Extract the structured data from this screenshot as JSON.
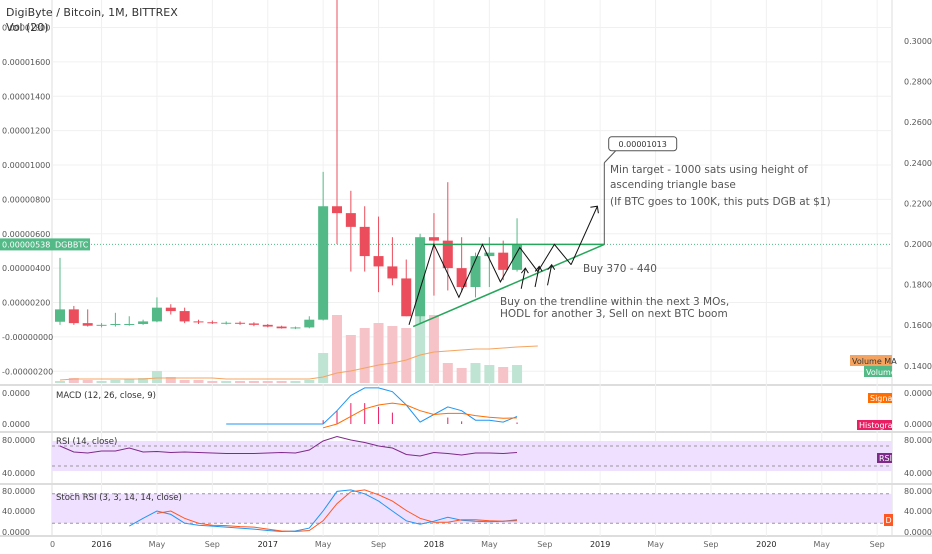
{
  "header": {
    "symbol_title": "DigiByte / Bitcoin, 1M, BITTREX",
    "volume_indicator": "Vol (20)"
  },
  "price_axis_left": {
    "ticks": [
      "0.00001800",
      "0.00001600",
      "0.00001400",
      "0.00001200",
      "0.00001000",
      "0.00000800",
      "0.00000600",
      "0.00000400",
      "0.00000200",
      "-0.00000000",
      "-0.00000200"
    ],
    "last_price": "0.00000538",
    "last_price_symbol": "DGBBTC"
  },
  "price_axis_right": {
    "ticks": [
      "0.3000",
      "0.2800",
      "0.2600",
      "0.2400",
      "0.2200",
      "0.2000",
      "0.1800",
      "0.1600",
      "0.1400"
    ]
  },
  "time_axis": {
    "ticks": [
      "0",
      "2016",
      "May",
      "Sep",
      "2017",
      "May",
      "Sep",
      "2018",
      "May",
      "Sep",
      "2019",
      "May",
      "Sep",
      "2020",
      "May",
      "Sep"
    ]
  },
  "panels": {
    "macd": {
      "title": "MACD (12, 26, close, 9)",
      "ticks": [
        "0.0000",
        "0.0000"
      ],
      "right_ticks": [
        "0.0000",
        "0.0000"
      ],
      "signal_label": "Signal",
      "histogram_label": "Histogram"
    },
    "rsi": {
      "title": "RSI (14, close)",
      "ticks": [
        "80.0000",
        "40.0000"
      ],
      "right_ticks": [
        "80.0000",
        "40.0000"
      ],
      "rsi_label": "RSI"
    },
    "stoch": {
      "title": "Stoch RSI (3, 3, 14, 14, close)",
      "ticks": [
        "80.0000",
        "40.0000",
        "0.0000"
      ],
      "right_ticks": [
        "80.0000",
        "40.0000",
        "0.0000"
      ],
      "d_label": "D"
    }
  },
  "volume_labels": {
    "ma": "Volume MA",
    "volume": "Volume"
  },
  "annotations": {
    "target_callout": "0.00001013",
    "target_line1": "Min target - 1000 sats using height of",
    "target_line2": "ascending triangle base",
    "btc_note": "(If BTC goes to 100K, this puts DGB at $1)",
    "buy_range": "Buy 370 - 440",
    "plan_line1": "Buy on the trendline within the next 3 MOs,",
    "plan_line2": "HODL for another 3, Sell on next BTC boom"
  },
  "colors": {
    "up": "#53b987",
    "down": "#eb4d5c",
    "volume_up": "#bfe4d3",
    "volume_down": "#f5c3c8",
    "macd_line": "#2196f3",
    "signal": "#ff6d00",
    "rsi": "#7e2a8a",
    "stoch_k": "#2196f3",
    "stoch_d": "#ff5722",
    "band": "#f0e0ff",
    "trendline": "#26a65b",
    "volume_ma": "#f4a460"
  },
  "chart_data": {
    "type": "candlestick",
    "title": "DigiByte / Bitcoin, 1M, BITTREX",
    "x": [
      "2015-10",
      "2015-11",
      "2015-12",
      "2016-01",
      "2016-02",
      "2016-03",
      "2016-04",
      "2016-05",
      "2016-06",
      "2016-07",
      "2016-08",
      "2016-09",
      "2016-10",
      "2016-11",
      "2016-12",
      "2017-01",
      "2017-02",
      "2017-03",
      "2017-04",
      "2017-05",
      "2017-06",
      "2017-07",
      "2017-08",
      "2017-09",
      "2017-10",
      "2017-11",
      "2017-12",
      "2018-01",
      "2018-02",
      "2018-03",
      "2018-04",
      "2018-05",
      "2018-06",
      "2018-07"
    ],
    "open": [
      8.8e-07,
      1.6e-06,
      8e-07,
      6.5e-07,
      7e-07,
      7.5e-07,
      7.5e-07,
      9e-07,
      1.7e-06,
      1.5e-06,
      9e-07,
      8.5e-07,
      8.2e-07,
      8.2e-07,
      7.8e-07,
      7e-07,
      6e-07,
      5e-07,
      5.5e-07,
      1e-06,
      7.6e-06,
      7.2e-06,
      6.4e-06,
      4.7e-06,
      4.1e-06,
      3.4e-06,
      1.2e-06,
      5.8e-06,
      5.6e-06,
      4e-06,
      2.9e-06,
      4.7e-06,
      4.9e-06,
      3.9e-06
    ],
    "high": [
      4.6e-06,
      1.8e-06,
      1.6e-06,
      8e-07,
      1.4e-06,
      1.2e-06,
      1e-06,
      2.3e-06,
      1.9e-06,
      1.7e-06,
      1e-06,
      9.5e-07,
      9e-07,
      9e-07,
      8.5e-07,
      7.5e-07,
      6.5e-07,
      6e-07,
      1.2e-06,
      9.6e-06,
      2.1e-05,
      8.5e-06,
      7.6e-06,
      7e-06,
      5.8e-06,
      4.5e-06,
      6e-06,
      7.2e-06,
      9e-06,
      5.8e-06,
      4.9e-06,
      5.8e-06,
      5.6e-06,
      6.9e-06
    ],
    "low": [
      7e-07,
      7e-07,
      6e-07,
      5.5e-07,
      6e-07,
      6.5e-07,
      7e-07,
      8.5e-07,
      1.3e-06,
      8e-07,
      7.5e-07,
      7.5e-07,
      7.2e-07,
      7e-07,
      6.2e-07,
      5.5e-07,
      4.8e-07,
      4.5e-07,
      5e-07,
      9.5e-07,
      5.4e-06,
      3.8e-06,
      3.8e-06,
      2.6e-06,
      3e-06,
      1.2e-06,
      8e-07,
      2.4e-06,
      2.7e-06,
      2.6e-06,
      2.3e-06,
      2.9e-06,
      3.3e-06,
      3.8e-06
    ],
    "close": [
      1.6e-06,
      8e-07,
      6.5e-07,
      7e-07,
      7.5e-07,
      7.5e-07,
      9e-07,
      1.7e-06,
      1.5e-06,
      9e-07,
      8.5e-07,
      8.2e-07,
      8.2e-07,
      7.8e-07,
      7e-07,
      6e-07,
      5e-07,
      5.5e-07,
      1e-06,
      7.6e-06,
      7.2e-06,
      6.4e-06,
      4.7e-06,
      4.1e-06,
      3.4e-06,
      1.2e-06,
      5.8e-06,
      5.6e-06,
      4e-06,
      2.9e-06,
      4.7e-06,
      4.9e-06,
      3.9e-06,
      5.38e-06
    ],
    "volume_rel": [
      0.02,
      0.05,
      0.03,
      0.02,
      0.03,
      0.04,
      0.05,
      0.12,
      0.06,
      0.03,
      0.03,
      0.02,
      0.02,
      0.02,
      0.02,
      0.02,
      0.02,
      0.02,
      0.03,
      0.3,
      0.68,
      0.48,
      0.55,
      0.6,
      0.57,
      0.55,
      1.0,
      0.68,
      0.2,
      0.15,
      0.2,
      0.18,
      0.16,
      0.18
    ],
    "volume_ma_rel": [
      0.03,
      0.04,
      0.04,
      0.04,
      0.04,
      0.04,
      0.04,
      0.05,
      0.05,
      0.05,
      0.05,
      0.05,
      0.04,
      0.04,
      0.04,
      0.04,
      0.04,
      0.04,
      0.04,
      0.06,
      0.1,
      0.12,
      0.15,
      0.18,
      0.2,
      0.23,
      0.28,
      0.31,
      0.32,
      0.33,
      0.34,
      0.34,
      0.35,
      0.36
    ],
    "macd_rel": [
      null,
      null,
      null,
      null,
      null,
      null,
      null,
      null,
      null,
      null,
      null,
      null,
      null,
      null,
      null,
      null,
      null,
      null,
      null,
      0.0,
      0.35,
      0.75,
      0.95,
      0.95,
      0.85,
      0.5,
      0.05,
      0.25,
      0.45,
      0.35,
      0.1,
      0.1,
      0.05,
      0.2
    ],
    "signal_rel": [
      null,
      null,
      null,
      null,
      null,
      null,
      null,
      null,
      null,
      null,
      null,
      null,
      null,
      null,
      null,
      null,
      null,
      null,
      null,
      -0.1,
      0.0,
      0.2,
      0.4,
      0.5,
      0.55,
      0.5,
      0.35,
      0.25,
      0.28,
      0.28,
      0.22,
      0.18,
      0.15,
      0.16
    ],
    "rsi": [
      70,
      58,
      56,
      60,
      60,
      66,
      58,
      59,
      57,
      58,
      57,
      56,
      55,
      55,
      55,
      56,
      57,
      56,
      62,
      80,
      89,
      82,
      77,
      70,
      66,
      53,
      50,
      57,
      55,
      52,
      56,
      56,
      55,
      57
    ],
    "stoch_k": [
      null,
      null,
      null,
      null,
      null,
      14,
      30,
      45,
      38,
      20,
      16,
      14,
      12,
      10,
      8,
      5,
      3,
      4,
      10,
      45,
      85,
      88,
      80,
      65,
      45,
      25,
      18,
      24,
      32,
      26,
      24,
      23,
      24,
      27
    ],
    "stoch_d": [
      null,
      null,
      null,
      null,
      null,
      null,
      null,
      40,
      45,
      30,
      20,
      16,
      15,
      13,
      12,
      8,
      4,
      3,
      5,
      25,
      60,
      84,
      88,
      78,
      65,
      46,
      30,
      22,
      22,
      27,
      27,
      25,
      24,
      25
    ],
    "ylim_price": [
      -2.8e-06,
      1.96e-05
    ],
    "ylim_rsi": [
      0,
      100
    ],
    "ylim_stoch": [
      0,
      100
    ],
    "overlay": {
      "triangle_resistance": 5.38e-06,
      "target": 1.013e-05,
      "trendline_start": [
        "2017-11",
        7e-07
      ],
      "trendline_end": [
        "2018-12",
        5.38e-06
      ]
    }
  }
}
